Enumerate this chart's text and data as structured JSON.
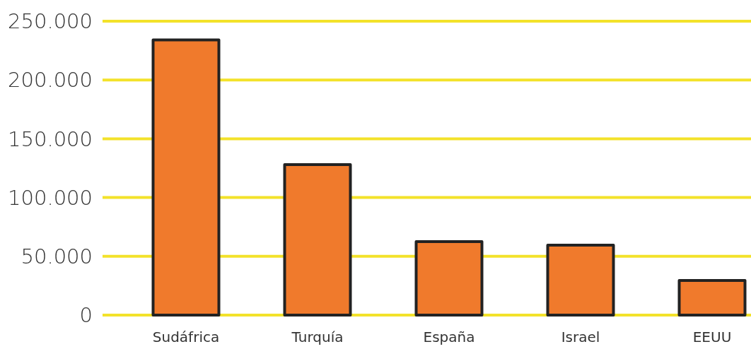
{
  "chart_data": {
    "type": "bar",
    "categories": [
      "Sudáfrica",
      "Turquía",
      "España",
      "Israel",
      "EEUU"
    ],
    "values": [
      234000,
      128000,
      62500,
      59500,
      29500
    ],
    "color": "#f07a2c",
    "ylim": [
      0,
      250000
    ],
    "yticks": [
      {
        "value": 0,
        "label": "0"
      },
      {
        "value": 50000,
        "label": "50.000"
      },
      {
        "value": 100000,
        "label": "100.000"
      },
      {
        "value": 150000,
        "label": "150.000"
      },
      {
        "value": 200000,
        "label": "200.000"
      },
      {
        "value": 250000,
        "label": "250.000"
      }
    ],
    "grid": "y"
  }
}
